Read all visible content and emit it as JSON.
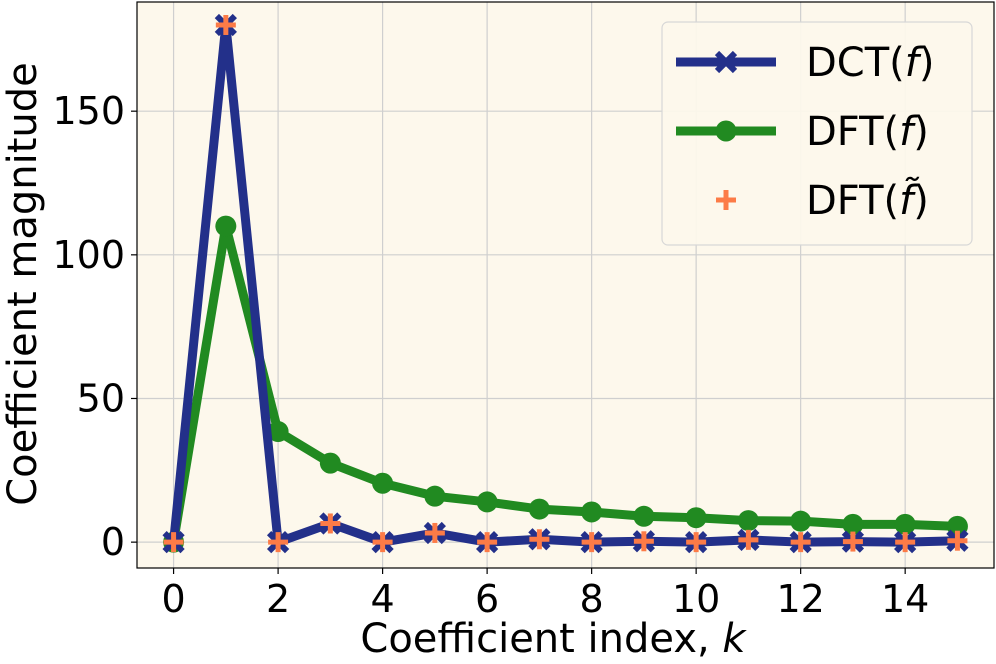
{
  "chart_data": {
    "type": "line",
    "xlabel": "Coefficient index, k",
    "xlabel_main": "Coefficient index, ",
    "xlabel_var": "k",
    "ylabel": "Coefficient magnitude",
    "xlim": [
      -0.7,
      15.7
    ],
    "ylim": [
      -9,
      188
    ],
    "x_ticks": [
      0,
      2,
      4,
      6,
      8,
      10,
      12,
      14
    ],
    "y_ticks": [
      0,
      50,
      100,
      150
    ],
    "grid": true,
    "legend_position": "top-right",
    "x": [
      0,
      1,
      2,
      3,
      4,
      5,
      6,
      7,
      8,
      9,
      10,
      11,
      12,
      13,
      14,
      15
    ],
    "series": [
      {
        "name": "DCT(f)",
        "legend_main": "DCT(",
        "legend_var": "f",
        "legend_tail": ")",
        "color": "#23308a",
        "marker": "x",
        "line": true,
        "values": [
          0,
          180,
          0,
          6.5,
          0,
          3.2,
          0,
          1.0,
          0,
          0.3,
          0,
          0.8,
          0,
          0.2,
          0,
          0.5
        ]
      },
      {
        "name": "DFT(f)",
        "legend_main": "DFT(",
        "legend_var": "f",
        "legend_tail": ")",
        "color": "#218a21",
        "marker": "circle",
        "line": true,
        "values": [
          0,
          110,
          38.5,
          27.5,
          20.5,
          16,
          14,
          11.5,
          10.5,
          9,
          8.5,
          7.5,
          7.3,
          6.2,
          6.2,
          5.5
        ]
      },
      {
        "name": "DFT(f̃)",
        "legend_main": "DFT(",
        "legend_var": "f̃",
        "legend_tail": ")",
        "color": "#fc7b47",
        "marker": "plus",
        "line": false,
        "values": [
          0,
          180,
          0,
          6.5,
          0,
          3.2,
          0,
          1.0,
          0,
          0.3,
          0,
          0.8,
          0,
          0.2,
          0,
          0.5
        ]
      }
    ],
    "background": "#fdf8ec"
  }
}
